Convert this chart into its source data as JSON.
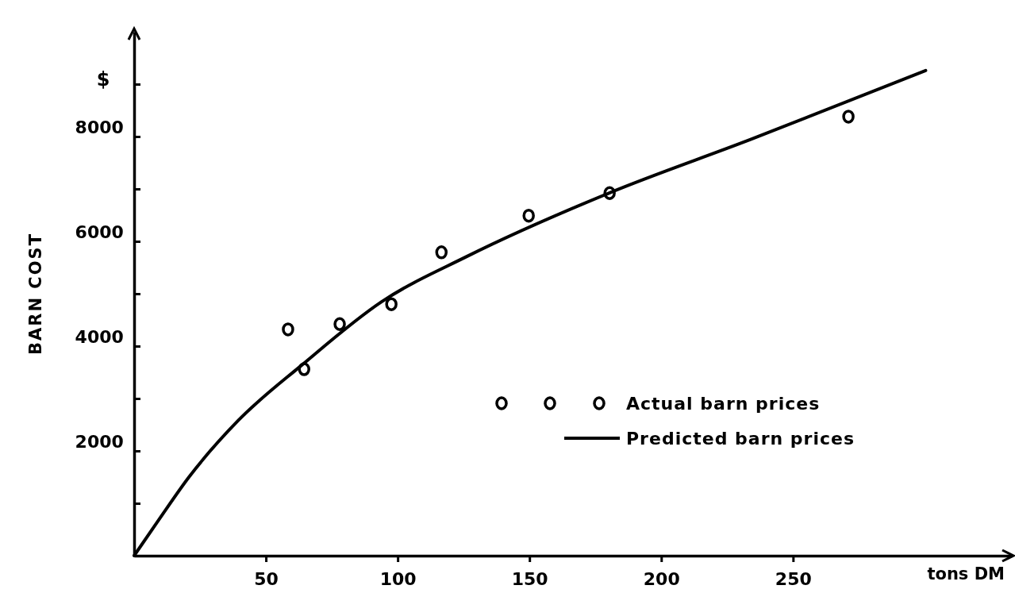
{
  "chart_data": {
    "type": "scatter",
    "xlabel": "tons DM",
    "ylabel": "BARN COST",
    "annotations": [
      "$"
    ],
    "xlim": [
      0,
      333
    ],
    "ylim": [
      0,
      10000
    ],
    "xticks": [
      50,
      100,
      150,
      200,
      250
    ],
    "yticks": [
      {
        "value": 0,
        "label": null
      },
      {
        "value": 1000,
        "label": null
      },
      2000,
      {
        "value": 3000,
        "label": null
      },
      4000,
      {
        "value": 5000,
        "label": null
      },
      6000,
      {
        "value": 7000,
        "label": null
      },
      8000,
      {
        "value": 9000,
        "label": null
      }
    ],
    "grid": false,
    "legend": "bottom right",
    "series": [
      {
        "name": "Actual barn prices",
        "marker": "circle",
        "color": "#000000",
        "x": [
          58.4,
          64.5,
          78,
          97.6,
          116.6,
          149.7,
          180.4,
          271
        ],
        "values": [
          4320,
          3560,
          4420,
          4800,
          5790,
          6490,
          6920,
          8380
        ]
      },
      {
        "name": "Predicted barn prices",
        "type": "line",
        "color": "#000000",
        "line_style": "solid",
        "x": [
          0,
          9.3,
          20.8,
          39.5,
          63.9,
          94,
          126.2,
          180.1,
          233.7,
          300.3
        ],
        "values": [
          0,
          680,
          1500,
          2580,
          3650,
          4850,
          5710,
          6920,
          7940,
          9260
        ]
      }
    ]
  }
}
